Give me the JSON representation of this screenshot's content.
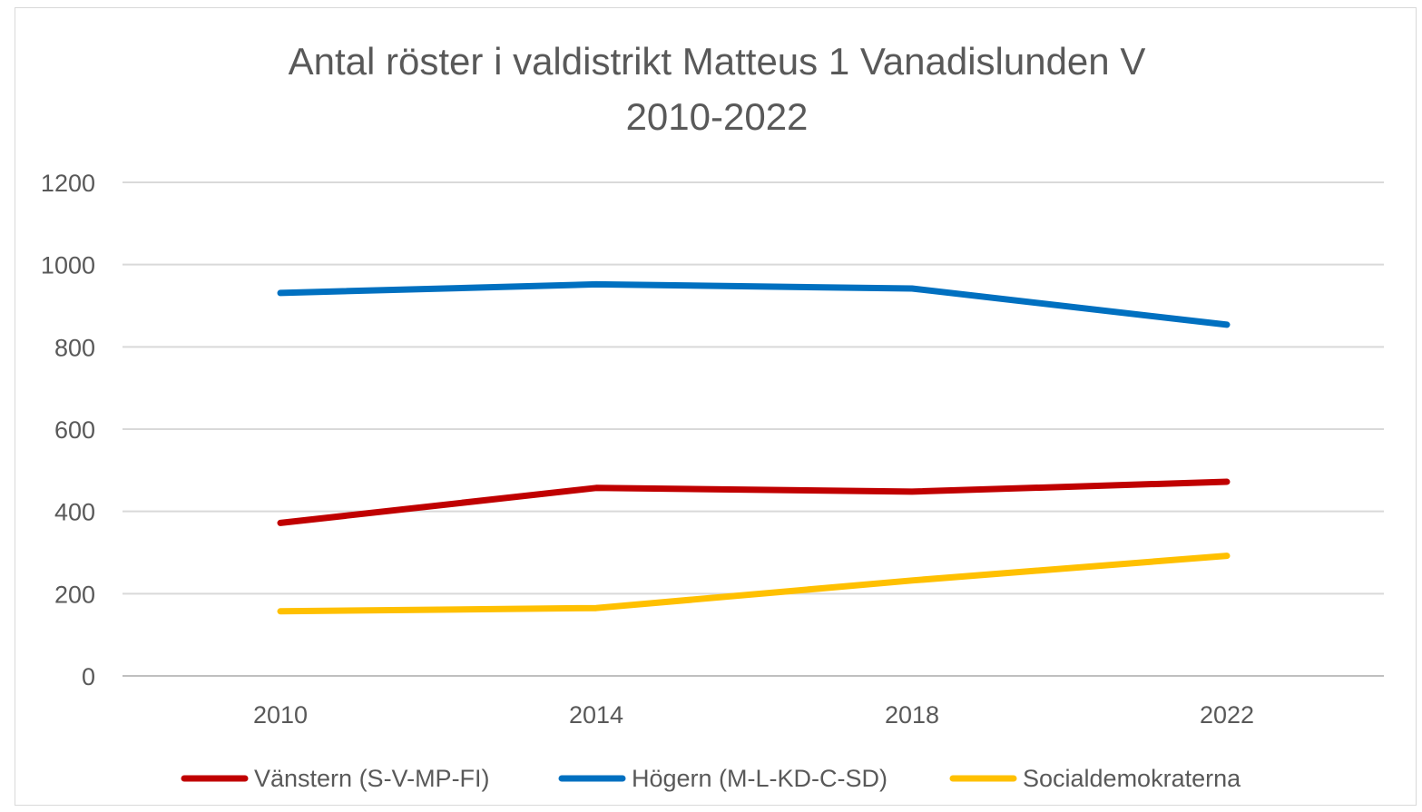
{
  "chart_data": {
    "type": "line",
    "title": "Antal röster i valdistrikt Matteus 1 Vanadislunden V 2010-2022",
    "title_lines": [
      "Antal röster i valdistrikt Matteus 1 Vanadislunden V",
      "2010-2022"
    ],
    "categories": [
      "2010",
      "2014",
      "2018",
      "2022"
    ],
    "y_ticks": [
      "0",
      "200",
      "400",
      "600",
      "800",
      "1000",
      "1200"
    ],
    "ylim": [
      0,
      1200
    ],
    "grid": true,
    "legend_position": "bottom",
    "series": [
      {
        "name": "Vänstern (S-V-MP-FI)",
        "color": "#c00000",
        "values": [
          372,
          457,
          448,
          472
        ]
      },
      {
        "name": "Högern (M-L-KD-C-SD)",
        "color": "#0070c0",
        "values": [
          931,
          952,
          942,
          854
        ]
      },
      {
        "name": "Socialdemokraterna",
        "color": "#ffc000",
        "values": [
          157,
          165,
          232,
          292
        ]
      }
    ]
  }
}
